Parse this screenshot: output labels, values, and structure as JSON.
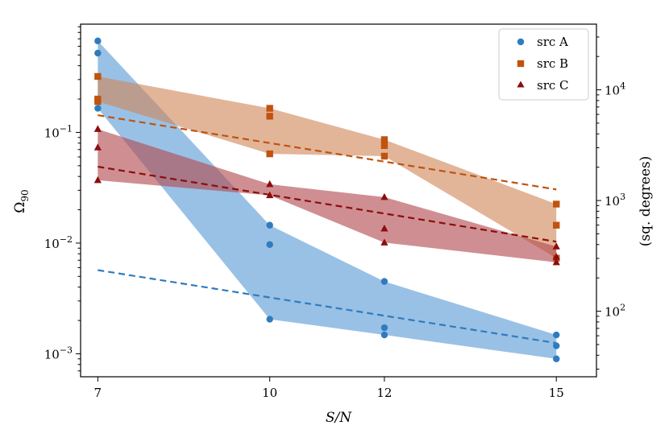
{
  "chart_data": {
    "type": "scatter",
    "xlabel": "S/N",
    "ylabel": "Ω90",
    "ylabel_main": "Ω",
    "ylabel_sub": "90",
    "y2label": "(sq. degrees)",
    "x_ticks": [
      7,
      10,
      12,
      15
    ],
    "x_tick_labels": [
      "7",
      "10",
      "12",
      "15"
    ],
    "xlim": [
      6.7,
      15.7
    ],
    "ylim": [
      0.00062,
      0.95
    ],
    "y_ticks": [
      0.001,
      0.01,
      0.1
    ],
    "y_tick_base": "10",
    "y_tick_exps": [
      "−3",
      "−2",
      "−1"
    ],
    "y2_factor": 41253,
    "y2_ticks": [
      100,
      1000,
      10000
    ],
    "y2_tick_exps": [
      "2",
      "3",
      "4"
    ],
    "legend_position": "top-right",
    "series": [
      {
        "name": "src A",
        "color": "#2f7bbf",
        "band_color": "#5b9bd5",
        "marker": "circle",
        "points": [
          {
            "x": 7,
            "y": 0.67
          },
          {
            "x": 7,
            "y": 0.52
          },
          {
            "x": 7,
            "y": 0.165
          },
          {
            "x": 10,
            "y": 0.0145
          },
          {
            "x": 10,
            "y": 0.0097
          },
          {
            "x": 10,
            "y": 0.00205
          },
          {
            "x": 12,
            "y": 0.0045
          },
          {
            "x": 12,
            "y": 0.00172
          },
          {
            "x": 12,
            "y": 0.00148
          },
          {
            "x": 15,
            "y": 0.00148
          },
          {
            "x": 15,
            "y": 0.00118
          },
          {
            "x": 15,
            "y": 0.0009
          }
        ],
        "band": {
          "x": [
            7,
            10,
            12,
            15
          ],
          "upper": [
            0.67,
            0.0145,
            0.0045,
            0.00148
          ],
          "lower": [
            0.165,
            0.00205,
            0.00148,
            0.0009
          ]
        },
        "fit": {
          "x": [
            7,
            15
          ],
          "y": [
            0.0057,
            0.00125
          ]
        }
      },
      {
        "name": "src B",
        "color": "#c0530f",
        "band_color": "#d0885a",
        "marker": "square",
        "points": [
          {
            "x": 7,
            "y": 0.32
          },
          {
            "x": 7,
            "y": 0.2
          },
          {
            "x": 7,
            "y": 0.19
          },
          {
            "x": 10,
            "y": 0.165
          },
          {
            "x": 10,
            "y": 0.14
          },
          {
            "x": 10,
            "y": 0.064
          },
          {
            "x": 12,
            "y": 0.086
          },
          {
            "x": 12,
            "y": 0.076
          },
          {
            "x": 12,
            "y": 0.061
          },
          {
            "x": 15,
            "y": 0.0225
          },
          {
            "x": 15,
            "y": 0.0145
          },
          {
            "x": 15,
            "y": 0.0073
          }
        ],
        "band": {
          "x": [
            7,
            10,
            12,
            15
          ],
          "upper": [
            0.32,
            0.165,
            0.086,
            0.0225
          ],
          "lower": [
            0.19,
            0.064,
            0.061,
            0.0073
          ]
        },
        "fit": {
          "x": [
            7,
            15
          ],
          "y": [
            0.143,
            0.0305
          ]
        }
      },
      {
        "name": "src C",
        "color": "#8b0d0d",
        "band_color": "#b24a4f",
        "marker": "triangle",
        "points": [
          {
            "x": 7,
            "y": 0.107
          },
          {
            "x": 7,
            "y": 0.073
          },
          {
            "x": 7,
            "y": 0.037
          },
          {
            "x": 10,
            "y": 0.034
          },
          {
            "x": 10,
            "y": 0.027
          },
          {
            "x": 12,
            "y": 0.026
          },
          {
            "x": 12,
            "y": 0.0135
          },
          {
            "x": 12,
            "y": 0.0101
          },
          {
            "x": 15,
            "y": 0.0093
          },
          {
            "x": 15,
            "y": 0.0075
          },
          {
            "x": 15,
            "y": 0.0067
          }
        ],
        "band": {
          "x": [
            7,
            10,
            12,
            15
          ],
          "upper": [
            0.107,
            0.034,
            0.026,
            0.0093
          ],
          "lower": [
            0.037,
            0.027,
            0.0101,
            0.0067
          ]
        },
        "fit": {
          "x": [
            7,
            15
          ],
          "y": [
            0.049,
            0.0103
          ]
        }
      }
    ]
  }
}
